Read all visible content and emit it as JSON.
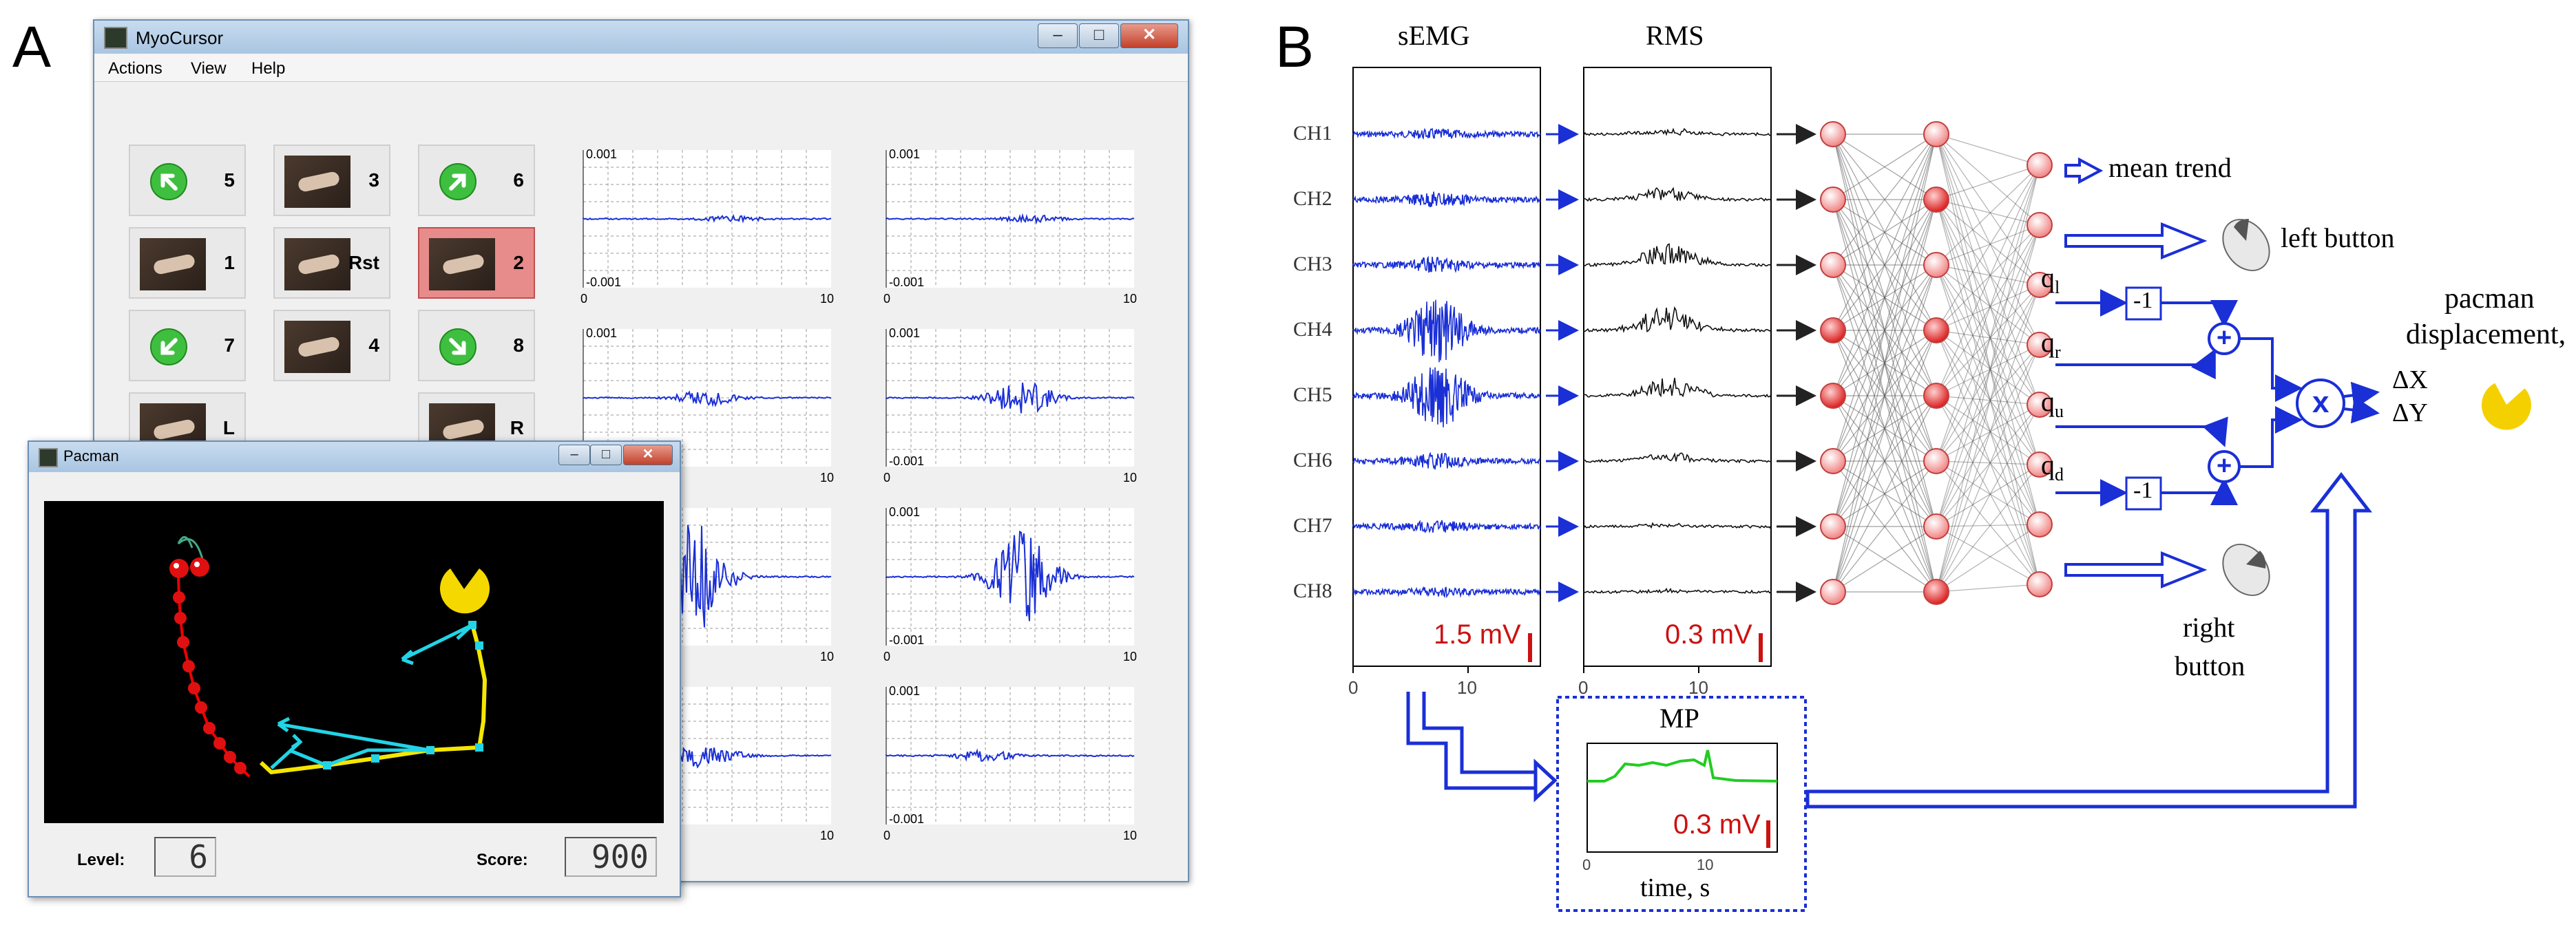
{
  "panels": {
    "a_letter": "A",
    "b_letter": "B"
  },
  "myocursor": {
    "title": "MyoCursor",
    "menu": [
      "Actions",
      "View",
      "Help"
    ],
    "window_buttons": {
      "min": "–",
      "max": "□",
      "close": "✕"
    },
    "gesture_buttons": [
      {
        "label": "5",
        "icon": "arrow-up-left-icon"
      },
      {
        "label": "3",
        "icon": "hand-gesture-icon"
      },
      {
        "label": "6",
        "icon": "arrow-up-right-icon"
      },
      {
        "label": "1",
        "icon": "hand-gesture-icon"
      },
      {
        "label": "Rst",
        "icon": "hand-gesture-icon"
      },
      {
        "label": "2",
        "icon": "hand-gesture-icon",
        "active": true
      },
      {
        "label": "7",
        "icon": "arrow-down-left-icon"
      },
      {
        "label": "4",
        "icon": "hand-gesture-icon"
      },
      {
        "label": "8",
        "icon": "arrow-down-right-icon"
      },
      {
        "label": "L",
        "icon": "hand-gesture-icon"
      },
      {
        "label": "R",
        "icon": "hand-gesture-icon"
      }
    ],
    "plot_axis": {
      "ymax": "0.001",
      "ymin": "-0.001",
      "xmin": "0",
      "xmax": "10"
    }
  },
  "pacman_window": {
    "title": "Pacman",
    "level_label": "Level:",
    "level_value": "6",
    "score_label": "Score:",
    "score_value": "900"
  },
  "panel_b": {
    "semg_title": "sEMG",
    "rms_title": "RMS",
    "channels": [
      "CH1",
      "CH2",
      "CH3",
      "CH4",
      "CH5",
      "CH6",
      "CH7",
      "CH8"
    ],
    "semg_scale": "1.5 mV",
    "rms_scale": "0.3 mV",
    "x_ticks": [
      "0",
      "10"
    ],
    "mp_title": "MP",
    "mp_scale": "0.3 mV",
    "mp_xlabel": "time, s",
    "outputs": {
      "mean_trend": "mean trend",
      "left_button": "left button",
      "right_button_1": "right",
      "right_button_2": "button",
      "q_l": "q",
      "q_l_sub": "l",
      "q_r": "q",
      "q_r_sub": "r",
      "q_u": "q",
      "q_u_sub": "u",
      "q_d": "q",
      "q_d_sub": "d",
      "neg_one": "-1",
      "plus": "+",
      "times": "x",
      "pacman_1": "pacman",
      "pacman_2": "displacement,",
      "dx": "ΔX",
      "dy": "ΔY"
    },
    "colors": {
      "blue": "#1a2fd6",
      "red": "#cc1111",
      "node": "#f08080",
      "green": "#22cc22"
    }
  }
}
